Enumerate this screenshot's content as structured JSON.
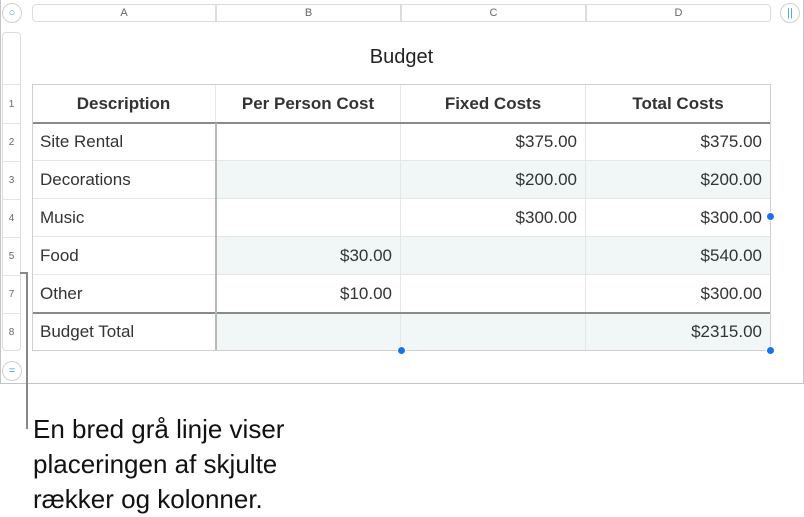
{
  "columns": [
    "A",
    "B",
    "C",
    "D"
  ],
  "rows": [
    "1",
    "2",
    "3",
    "4",
    "5",
    "7",
    "8"
  ],
  "table": {
    "title": "Budget",
    "headers": [
      "Description",
      "Per Person Cost",
      "Fixed Costs",
      "Total Costs"
    ],
    "body": [
      [
        "Site Rental",
        "",
        "$375.00",
        "$375.00"
      ],
      [
        "Decorations",
        "",
        "$200.00",
        "$200.00"
      ],
      [
        "Music",
        "",
        "$300.00",
        "$300.00"
      ],
      [
        "Food",
        "$30.00",
        "",
        "$540.00"
      ],
      [
        "Other",
        "$10.00",
        "",
        "$300.00"
      ]
    ],
    "footer": [
      "Budget Total",
      "",
      "",
      "$2315.00"
    ]
  },
  "callout": {
    "lines": [
      "En bred grå linje viser",
      "placeringen af skjulte",
      "rækker og kolonner."
    ]
  },
  "colors": {
    "accent": "#1a73e8",
    "alt_row": "#f1f7f7"
  }
}
